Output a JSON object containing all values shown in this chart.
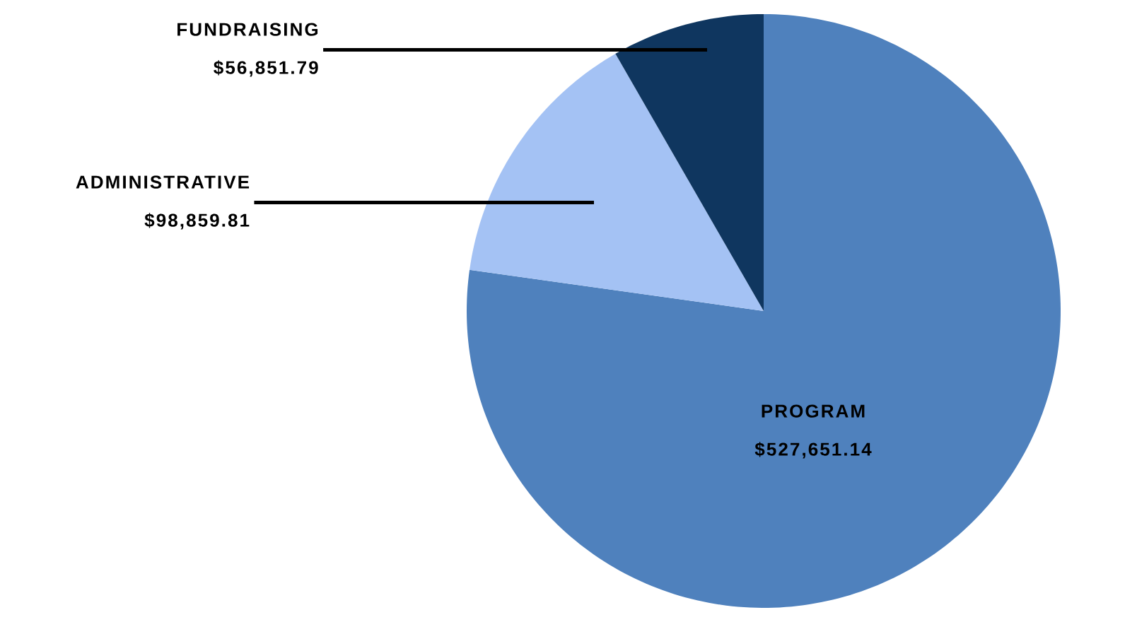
{
  "chart_data": {
    "type": "pie",
    "categories": [
      "PROGRAM",
      "ADMINISTRATIVE",
      "FUNDRAISING"
    ],
    "values": [
      527651.14,
      98859.81,
      56851.79
    ],
    "value_labels": [
      "$527,651.14",
      "$98,859.81",
      "$56,851.79"
    ],
    "colors": [
      "#4f81bd",
      "#a4c2f4",
      "#0f365f"
    ]
  }
}
